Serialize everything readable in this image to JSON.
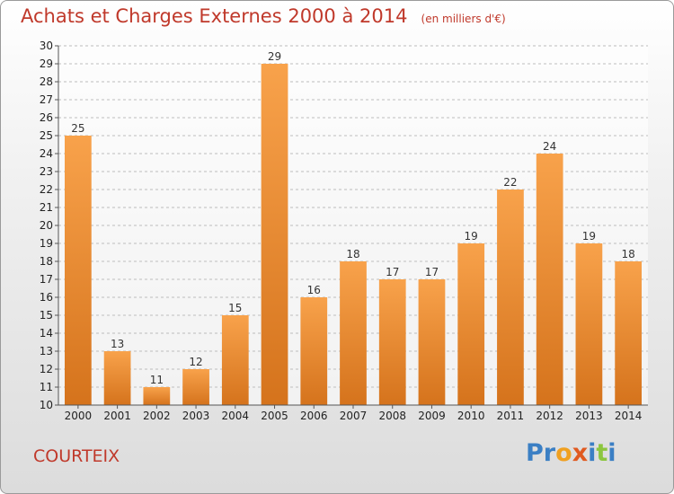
{
  "header": {
    "title": "Achats et Charges Externes 2000 à 2014",
    "unit_note": "(en milliers d'€)"
  },
  "location": "COURTEIX",
  "logo": {
    "letters": [
      {
        "ch": "P",
        "color": "#3b7fc4"
      },
      {
        "ch": "r",
        "color": "#3b7fc4"
      },
      {
        "ch": "o",
        "color": "#f0a020"
      },
      {
        "ch": "x",
        "color": "#e05a20"
      },
      {
        "ch": "i",
        "color": "#3b7fc4"
      },
      {
        "ch": "t",
        "color": "#8cc63f"
      },
      {
        "ch": "i",
        "color": "#3b7fc4"
      }
    ]
  },
  "colors": {
    "title": "#c0392b",
    "bar_light": "#f8a24b",
    "bar_dark": "#d5731c",
    "grid": "#bdbdbd"
  },
  "chart_data": {
    "type": "bar",
    "title": "Achats et Charges Externes 2000 à 2014",
    "subtitle": "(en milliers d'€)",
    "categories": [
      "2000",
      "2001",
      "2002",
      "2003",
      "2004",
      "2005",
      "2006",
      "2007",
      "2008",
      "2009",
      "2010",
      "2011",
      "2012",
      "2013",
      "2014"
    ],
    "values": [
      25,
      13,
      11,
      12,
      15,
      29,
      16,
      18,
      17,
      17,
      19,
      22,
      24,
      19,
      18
    ],
    "ylim": [
      10,
      30
    ],
    "yticks": [
      10,
      11,
      12,
      13,
      14,
      15,
      16,
      17,
      18,
      19,
      20,
      21,
      22,
      23,
      24,
      25,
      26,
      27,
      28,
      29,
      30
    ],
    "grid": true,
    "legend": "none"
  }
}
